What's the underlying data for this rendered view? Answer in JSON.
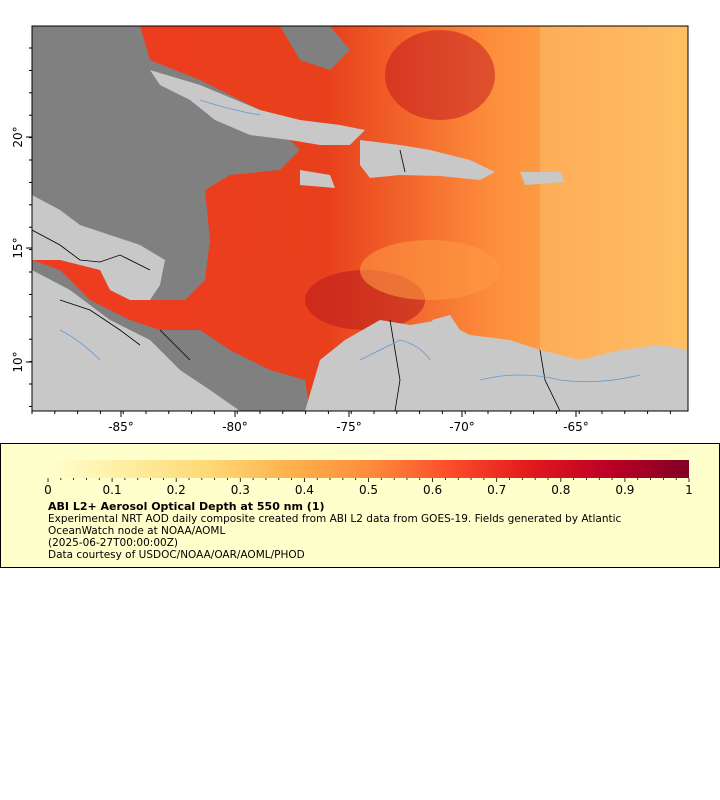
{
  "map": {
    "x_ticks": [
      "-85°",
      "-80°",
      "-75°",
      "-70°",
      "-65°"
    ],
    "y_ticks": [
      "20°",
      "15°",
      "10°"
    ],
    "colors": {
      "land": "#c8c8c8",
      "no_data": "#808080",
      "border": "#000000",
      "river": "#6699cc"
    }
  },
  "legend": {
    "colorbar_ticks": [
      "0",
      "0.1",
      "0.2",
      "0.3",
      "0.4",
      "0.5",
      "0.6",
      "0.7",
      "0.8",
      "0.9",
      "1"
    ],
    "colorbar_colors": [
      "#ffffcc",
      "#ffeda0",
      "#fed976",
      "#feb24c",
      "#fd8d3c",
      "#fc4e2a",
      "#e31a1c",
      "#bd0026",
      "#800026"
    ],
    "title": "ABI L2+ Aerosol Optical Depth at 550 nm (1)",
    "description": "Experimental NRT AOD daily composite created from ABI L2 data from GOES-19. Fields generated by Atlantic OceanWatch node at NOAA/AOML",
    "date": "(2025-06-27T00:00:00Z)",
    "credit": "Data courtesy of USDOC/NOAA/OAR/AOML/PHOD",
    "background": "#ffffcc"
  }
}
